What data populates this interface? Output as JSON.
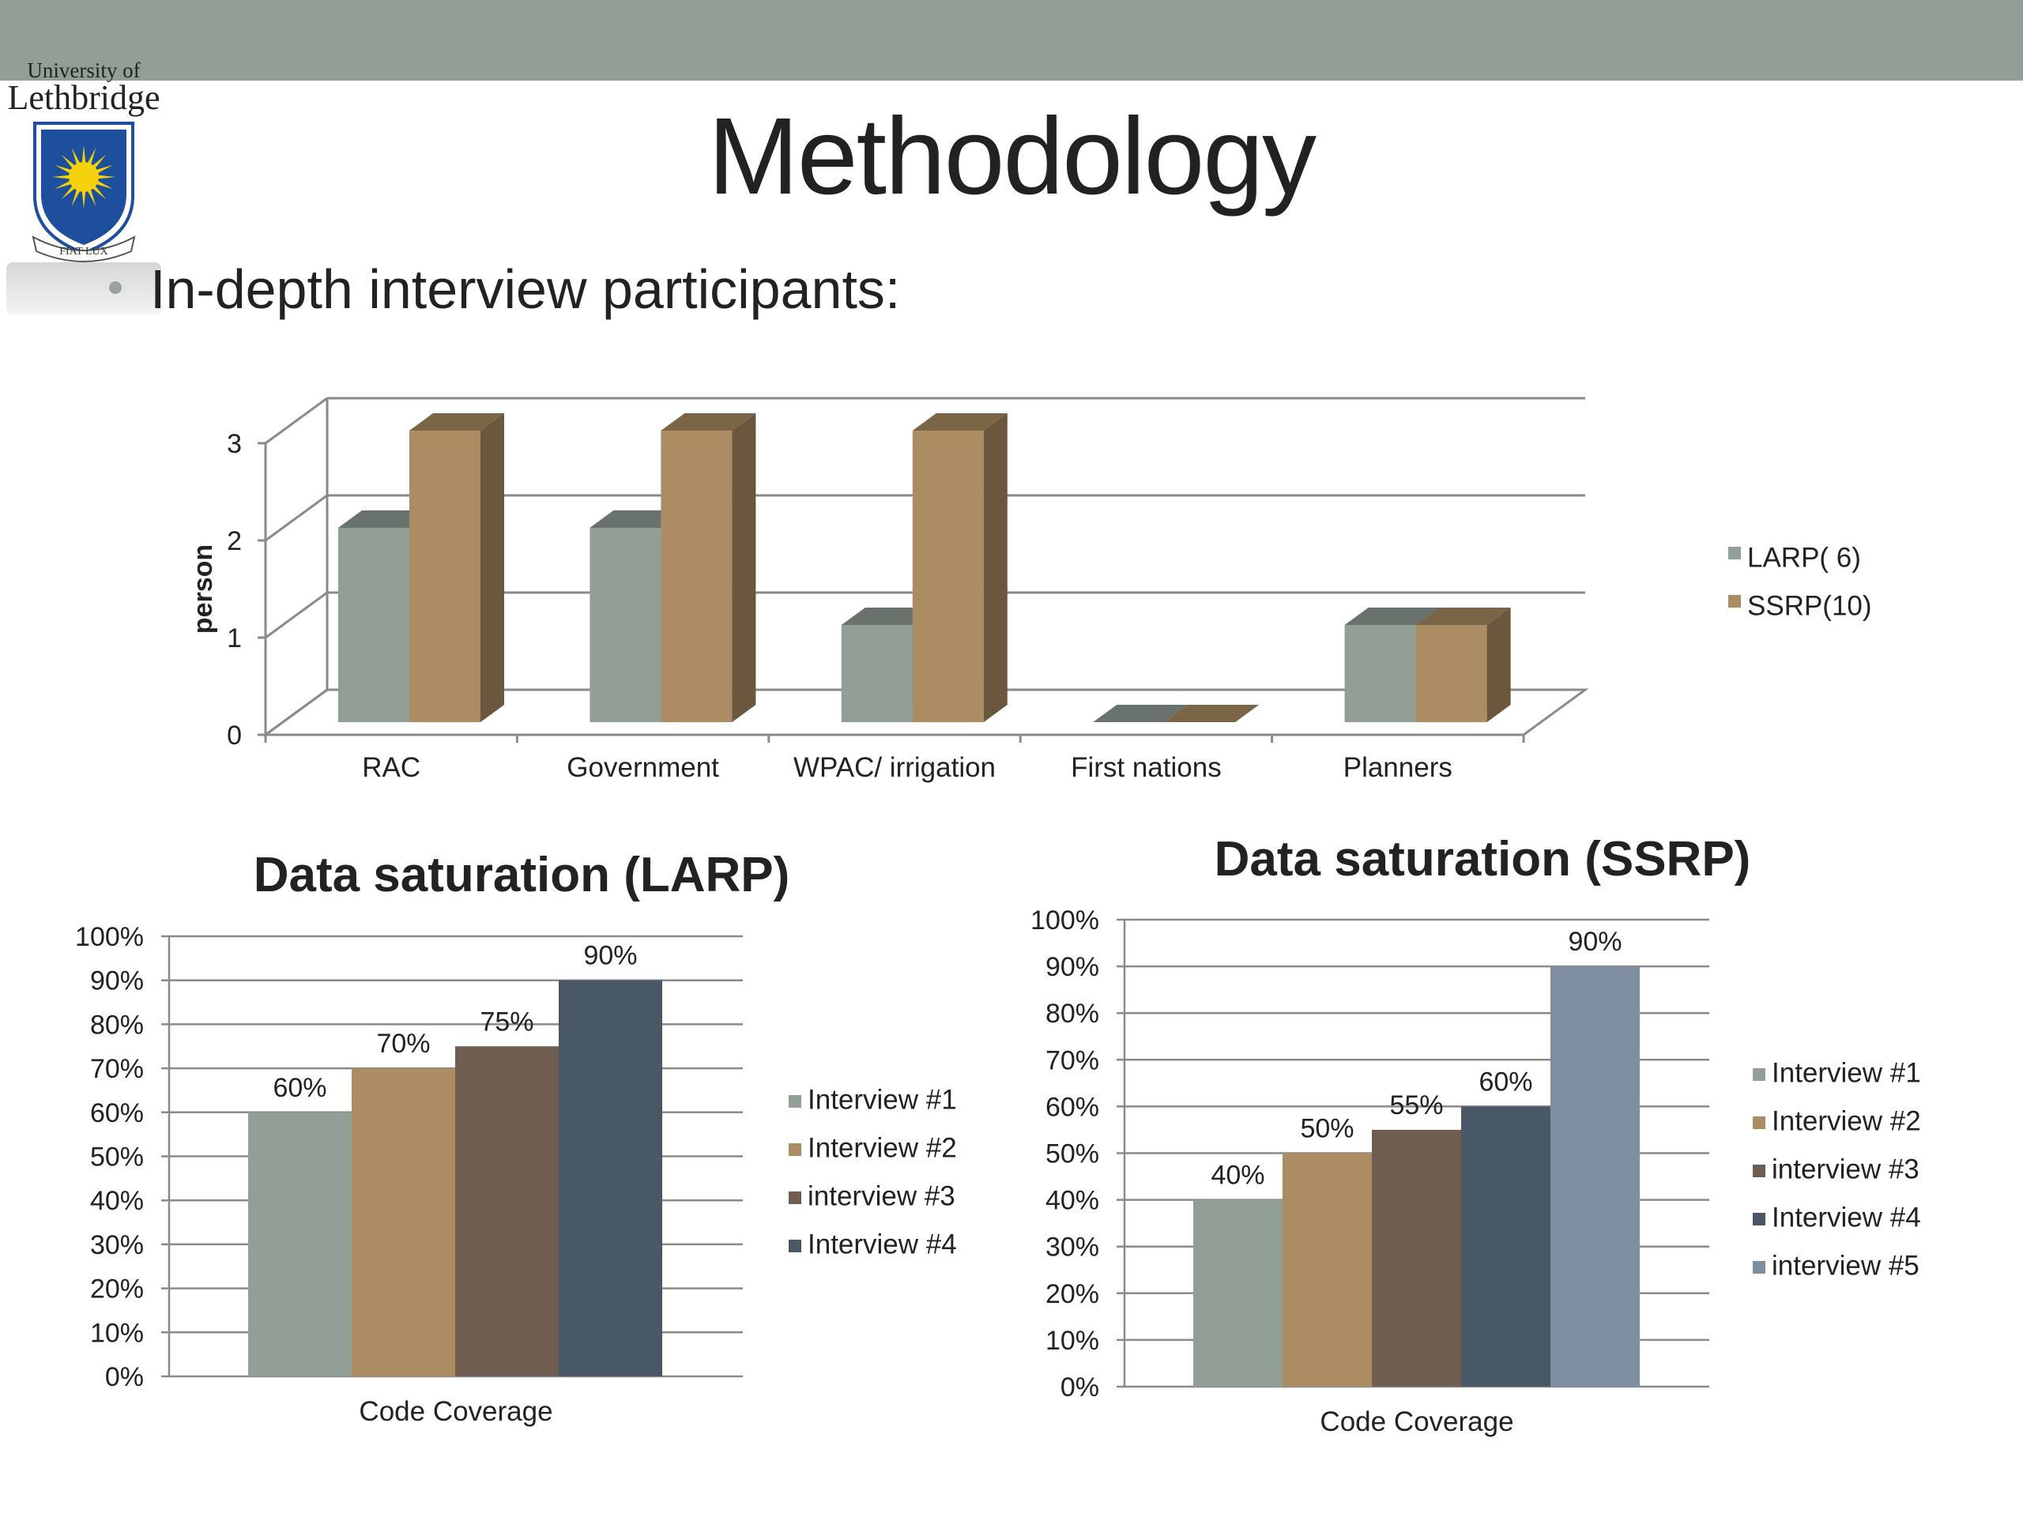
{
  "header": {
    "bar_color": "#929f96"
  },
  "logo": {
    "line1": "University of",
    "line2": "Lethbridge",
    "motto": "FIAT LUX",
    "shield_color": "#1d4f9c",
    "sun_color": "#f5d10c"
  },
  "page": {
    "title": "Methodology",
    "bullet": "In-depth interview participants:"
  },
  "colors": {
    "gray": "#929f96",
    "tan": "#ab8c63",
    "brown": "#6f5d51",
    "navy": "#485867",
    "bluegray": "#7f8ea1"
  },
  "chart_data": [
    {
      "id": "participants",
      "type": "bar",
      "style": "3d-clustered-column",
      "title": "",
      "xlabel": "",
      "ylabel": "person",
      "ylim": [
        0,
        3
      ],
      "yticks": [
        "0",
        "1",
        "2",
        "3"
      ],
      "categories": [
        "RAC",
        "Government",
        "WPAC/ irrigation",
        "First nations",
        "Planners"
      ],
      "series": [
        {
          "name": "LARP( 6)",
          "color": "#929f96",
          "values": [
            2,
            2,
            1,
            0,
            1
          ]
        },
        {
          "name": "SSRP(10)",
          "color": "#ab8c63",
          "values": [
            3,
            3,
            3,
            0,
            1
          ]
        }
      ],
      "grid": true,
      "legend": "right"
    },
    {
      "id": "larp",
      "type": "bar",
      "title": "Data saturation (LARP)",
      "xlabel": "",
      "ylabel": "",
      "ylim": [
        0,
        100
      ],
      "yticks": [
        "0%",
        "10%",
        "20%",
        "30%",
        "40%",
        "50%",
        "60%",
        "70%",
        "80%",
        "90%",
        "100%"
      ],
      "categories": [
        "Code Coverage"
      ],
      "series": [
        {
          "name": "Interview #1",
          "color": "#929f96",
          "values": [
            60
          ],
          "label": "60%"
        },
        {
          "name": "Interview #2",
          "color": "#ab8c63",
          "values": [
            70
          ],
          "label": "70%"
        },
        {
          "name": "interview #3",
          "color": "#6f5d51",
          "values": [
            75
          ],
          "label": "75%"
        },
        {
          "name": "Interview #4",
          "color": "#485867",
          "values": [
            90
          ],
          "label": "90%"
        }
      ],
      "grid": true,
      "legend": "right"
    },
    {
      "id": "ssrp",
      "type": "bar",
      "title": "Data saturation (SSRP)",
      "xlabel": "",
      "ylabel": "",
      "ylim": [
        0,
        100
      ],
      "yticks": [
        "0%",
        "10%",
        "20%",
        "30%",
        "40%",
        "50%",
        "60%",
        "70%",
        "80%",
        "90%",
        "100%"
      ],
      "categories": [
        "Code Coverage"
      ],
      "series": [
        {
          "name": "Interview #1",
          "color": "#929f96",
          "values": [
            40
          ],
          "label": "40%"
        },
        {
          "name": "Interview #2",
          "color": "#ab8c63",
          "values": [
            50
          ],
          "label": "50%"
        },
        {
          "name": "interview #3",
          "color": "#6f5d51",
          "values": [
            55
          ],
          "label": "55%"
        },
        {
          "name": "Interview #4",
          "color": "#485867",
          "values": [
            60
          ],
          "label": "60%"
        },
        {
          "name": "interview #5",
          "color": "#7f8ea1",
          "values": [
            90
          ],
          "label": "90%"
        }
      ],
      "grid": true,
      "legend": "right"
    }
  ]
}
